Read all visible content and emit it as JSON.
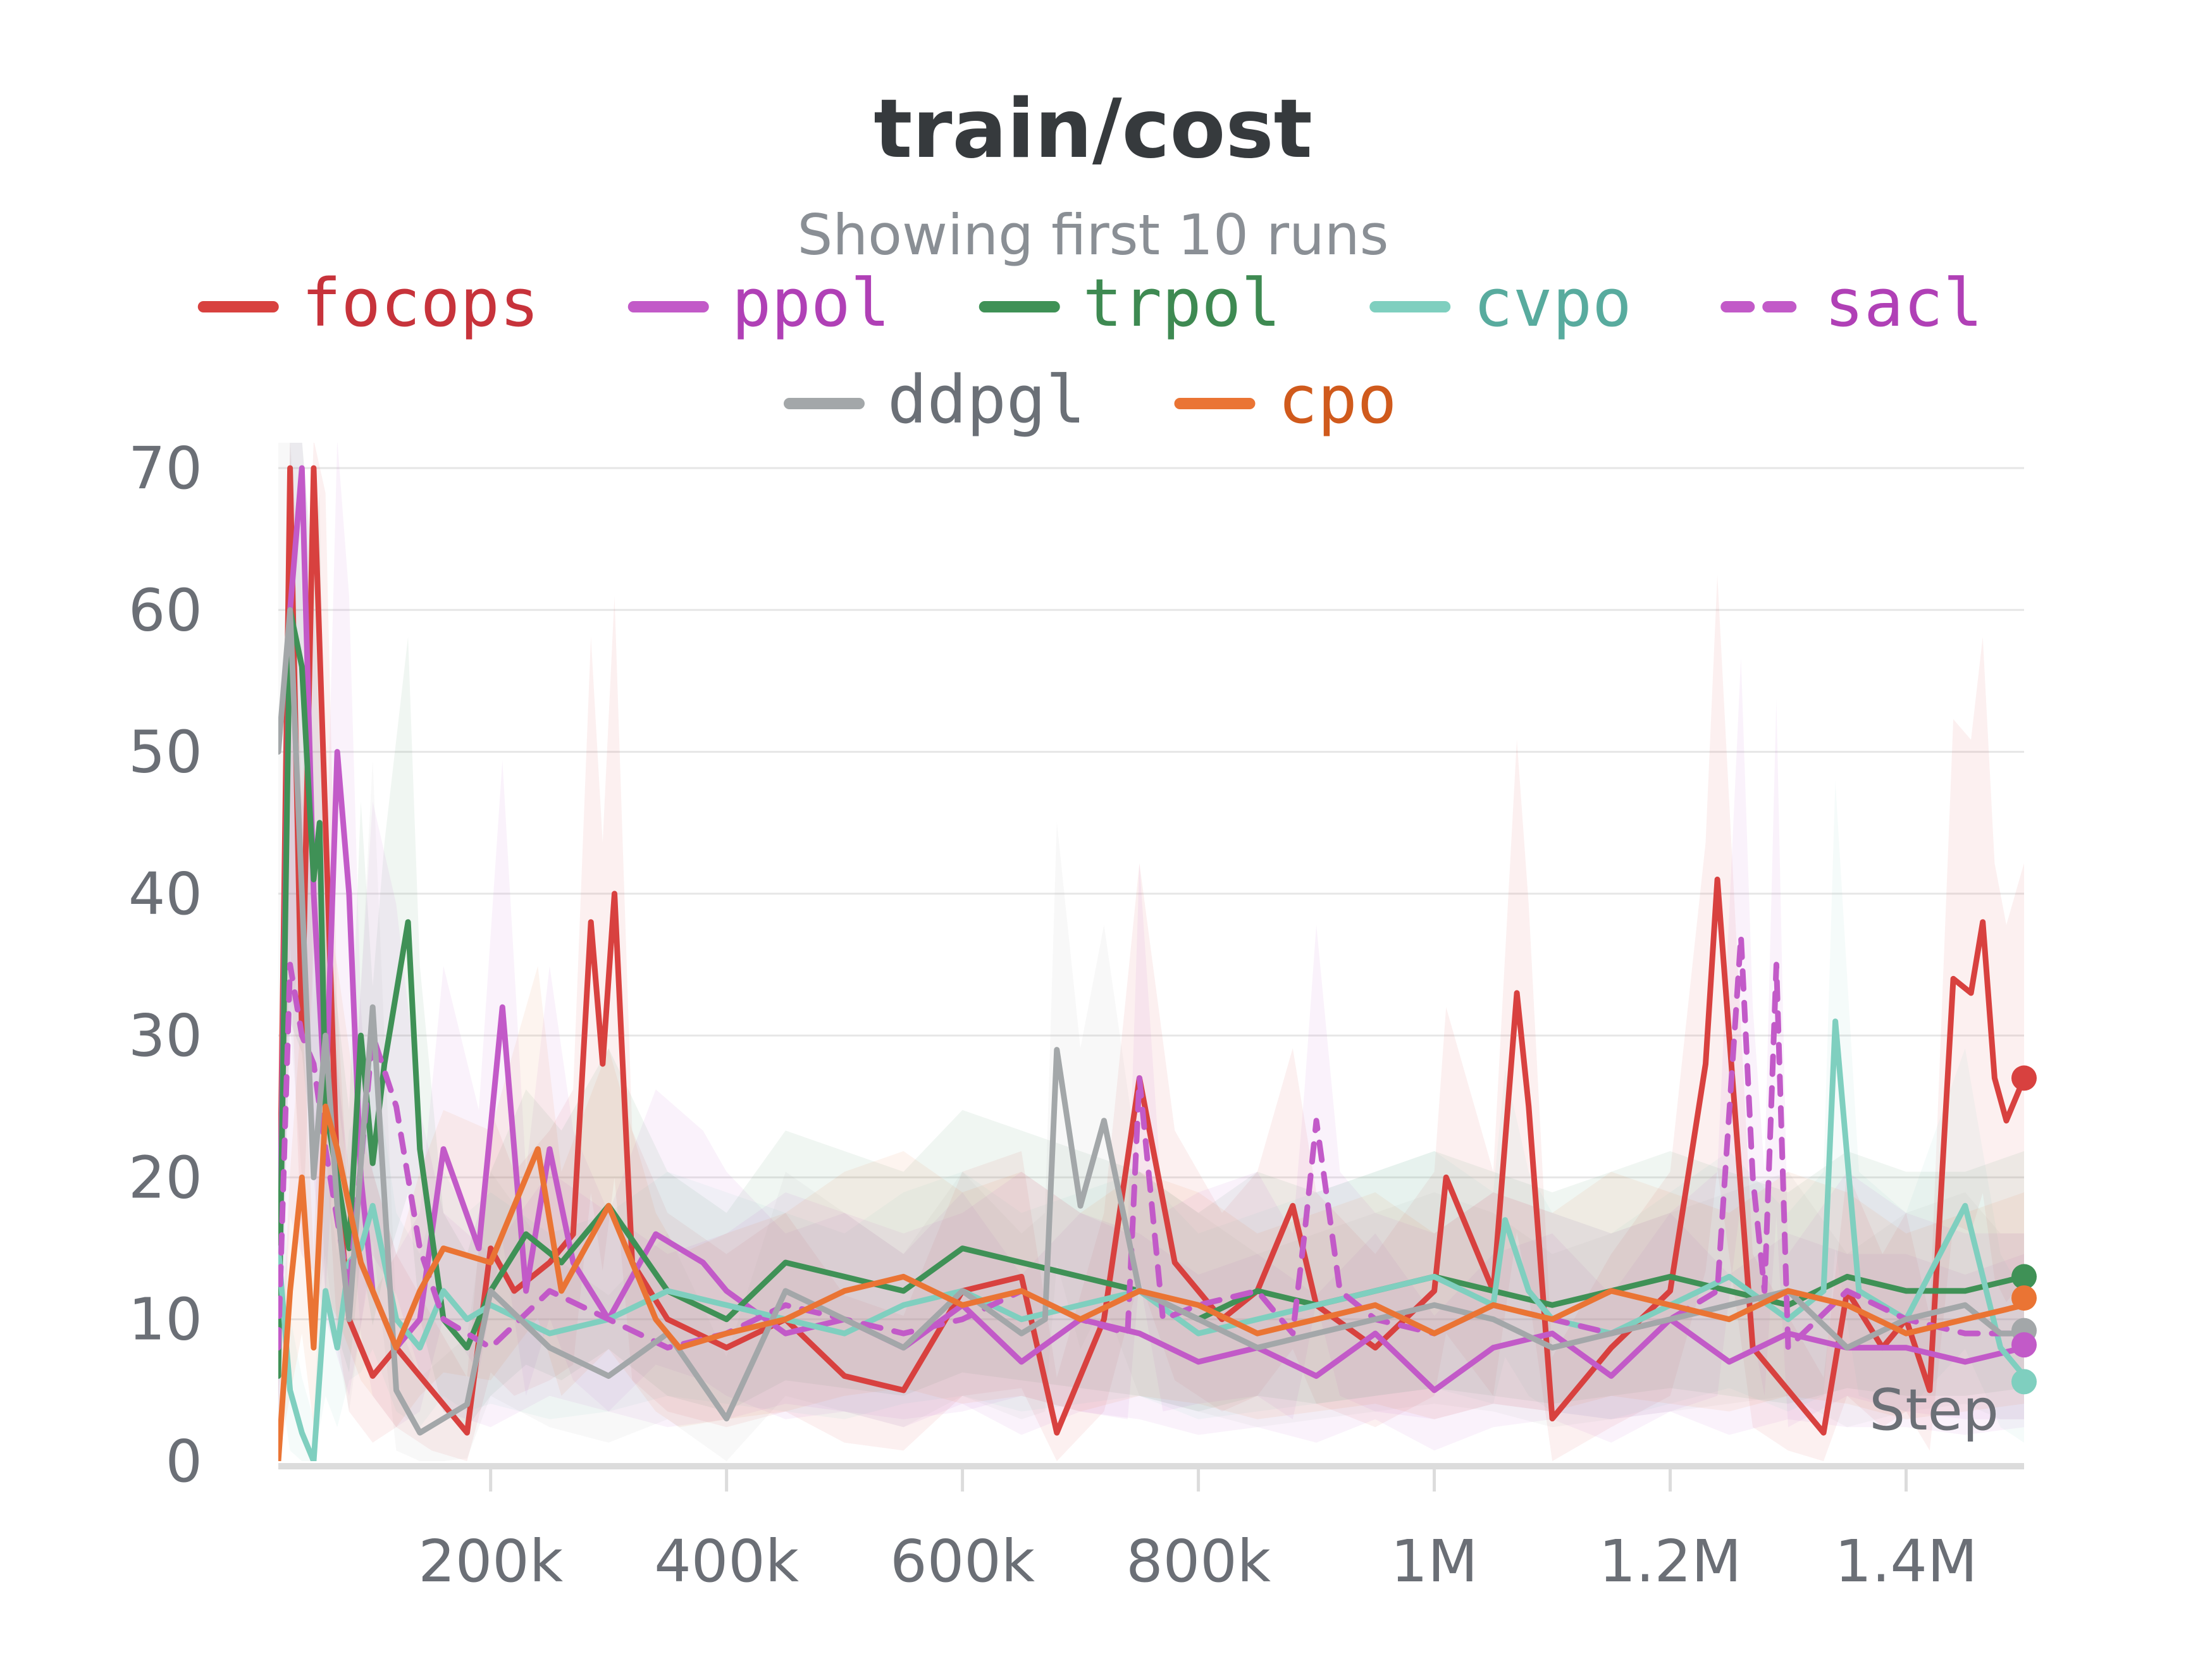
{
  "chart_data": {
    "type": "line",
    "title": "train/cost",
    "subtitle": "Showing first 10 runs",
    "xlabel": "Step",
    "ylabel": "",
    "xlim": [
      20000,
      1500000
    ],
    "ylim": [
      0,
      70
    ],
    "y_ticks": [
      0,
      10,
      20,
      30,
      40,
      50,
      60,
      70
    ],
    "x_ticks": [
      {
        "value": 200000,
        "label": "200k"
      },
      {
        "value": 400000,
        "label": "400k"
      },
      {
        "value": 600000,
        "label": "600k"
      },
      {
        "value": 800000,
        "label": "800k"
      },
      {
        "value": 1000000,
        "label": "1M"
      },
      {
        "value": 1200000,
        "label": "1.2M"
      },
      {
        "value": 1400000,
        "label": "1.4M"
      }
    ],
    "grid": true,
    "legend_position": "top",
    "series": [
      {
        "name": "focops",
        "color": "#d8413f",
        "text_color": "#c7333b",
        "dash": false,
        "x": [
          20000,
          30000,
          40000,
          50000,
          60000,
          70000,
          80000,
          100000,
          120000,
          150000,
          180000,
          200000,
          220000,
          250000,
          270000,
          285000,
          295000,
          305000,
          320000,
          350000,
          400000,
          450000,
          500000,
          550000,
          600000,
          650000,
          680000,
          720000,
          750000,
          780000,
          820000,
          850000,
          880000,
          900000,
          950000,
          1000000,
          1010000,
          1050000,
          1070000,
          1080000,
          1100000,
          1150000,
          1200000,
          1230000,
          1240000,
          1250000,
          1270000,
          1300000,
          1330000,
          1350000,
          1380000,
          1400000,
          1420000,
          1440000,
          1455000,
          1465000,
          1475000,
          1485000,
          1500000
        ],
        "y": [
          10,
          70,
          30,
          70,
          45,
          20,
          10,
          6,
          8,
          5,
          2,
          15,
          12,
          14,
          16,
          38,
          28,
          40,
          14,
          10,
          8,
          10,
          6,
          5,
          12,
          13,
          2,
          10,
          27,
          14,
          10,
          12,
          18,
          11,
          8,
          12,
          20,
          12,
          33,
          25,
          3,
          8,
          12,
          28,
          41,
          30,
          8,
          5,
          2,
          12,
          8,
          10,
          5,
          34,
          33,
          38,
          27,
          24,
          27
        ]
      },
      {
        "name": "ppol",
        "color": "#c25ac8",
        "text_color": "#b040b6",
        "dash": false,
        "x": [
          20000,
          30000,
          40000,
          50000,
          60000,
          70000,
          80000,
          90000,
          100000,
          120000,
          140000,
          160000,
          190000,
          210000,
          230000,
          250000,
          270000,
          300000,
          340000,
          360000,
          380000,
          400000,
          450000,
          500000,
          550000,
          600000,
          650000,
          700000,
          750000,
          800000,
          850000,
          900000,
          950000,
          1000000,
          1050000,
          1100000,
          1150000,
          1200000,
          1250000,
          1300000,
          1350000,
          1400000,
          1450000,
          1500000
        ],
        "y": [
          10,
          60,
          70,
          40,
          25,
          50,
          40,
          20,
          12,
          8,
          10,
          22,
          15,
          32,
          12,
          22,
          14,
          10,
          16,
          15,
          14,
          12,
          9,
          10,
          8,
          11,
          7,
          10,
          9,
          7,
          8,
          6,
          9,
          5,
          8,
          9,
          6,
          10,
          7,
          9,
          8,
          8,
          7,
          8
        ]
      },
      {
        "name": "trpol",
        "color": "#3f9156",
        "text_color": "#3e8a52",
        "dash": false,
        "x": [
          20000,
          30000,
          40000,
          50000,
          55000,
          60000,
          70000,
          80000,
          90000,
          100000,
          110000,
          130000,
          140000,
          160000,
          180000,
          200000,
          230000,
          260000,
          300000,
          350000,
          400000,
          450000,
          500000,
          550000,
          600000,
          650000,
          700000,
          750000,
          800000,
          850000,
          900000,
          950000,
          1000000,
          1050000,
          1100000,
          1150000,
          1200000,
          1250000,
          1300000,
          1350000,
          1400000,
          1450000,
          1500000
        ],
        "y": [
          6,
          60,
          56,
          41,
          45,
          25,
          20,
          15,
          30,
          21,
          28,
          38,
          22,
          10,
          8,
          12,
          16,
          14,
          18,
          12,
          10,
          14,
          13,
          12,
          15,
          14,
          13,
          12,
          10,
          12,
          11,
          12,
          13,
          12,
          11,
          12,
          13,
          12,
          11,
          13,
          12,
          12,
          13
        ]
      },
      {
        "name": "cvpo",
        "color": "#7fcfbf",
        "text_color": "#58ab9e",
        "dash": false,
        "x": [
          20000,
          30000,
          40000,
          50000,
          60000,
          70000,
          80000,
          90000,
          100000,
          120000,
          140000,
          160000,
          180000,
          200000,
          250000,
          300000,
          350000,
          400000,
          450000,
          500000,
          550000,
          600000,
          650000,
          700000,
          750000,
          800000,
          850000,
          900000,
          950000,
          1000000,
          1050000,
          1060000,
          1080000,
          1100000,
          1150000,
          1200000,
          1250000,
          1300000,
          1330000,
          1340000,
          1360000,
          1400000,
          1450000,
          1480000,
          1500000
        ],
        "y": [
          15,
          5,
          2,
          0,
          12,
          8,
          14,
          15,
          18,
          10,
          8,
          12,
          10,
          11,
          9,
          10,
          12,
          11,
          10,
          9,
          11,
          12,
          10,
          11,
          12,
          9,
          10,
          11,
          12,
          13,
          11,
          17,
          12,
          10,
          9,
          11,
          13,
          10,
          12,
          31,
          12,
          10,
          18,
          8,
          6
        ]
      },
      {
        "name": "sacl",
        "color": "#c25ac8",
        "text_color": "#b040b6",
        "dash": true,
        "x": [
          20000,
          30000,
          40000,
          50000,
          60000,
          80000,
          100000,
          120000,
          140000,
          160000,
          200000,
          250000,
          300000,
          350000,
          400000,
          450000,
          500000,
          550000,
          600000,
          650000,
          700000,
          740000,
          750000,
          770000,
          800000,
          850000,
          880000,
          890000,
          900000,
          920000,
          950000,
          1000000,
          1050000,
          1100000,
          1150000,
          1200000,
          1240000,
          1260000,
          1270000,
          1280000,
          1290000,
          1300000,
          1350000,
          1400000,
          1450000,
          1500000
        ],
        "y": [
          8,
          35,
          30,
          28,
          22,
          12,
          30,
          25,
          15,
          10,
          8,
          12,
          10,
          8,
          9,
          11,
          10,
          9,
          10,
          12,
          10,
          9,
          27,
          10,
          11,
          12,
          9,
          16,
          24,
          12,
          10,
          9,
          11,
          10,
          9,
          10,
          12,
          37,
          20,
          12,
          35,
          8,
          12,
          10,
          9,
          9
        ]
      },
      {
        "name": "ddpgl",
        "color": "#a3a7a9",
        "text_color": "#6b7077",
        "dash": false,
        "x": [
          20000,
          30000,
          40000,
          50000,
          60000,
          70000,
          80000,
          100000,
          120000,
          140000,
          160000,
          180000,
          200000,
          250000,
          300000,
          350000,
          400000,
          450000,
          500000,
          550000,
          600000,
          650000,
          670000,
          680000,
          700000,
          720000,
          750000,
          800000,
          850000,
          900000,
          950000,
          1000000,
          1050000,
          1100000,
          1150000,
          1200000,
          1250000,
          1300000,
          1350000,
          1400000,
          1450000,
          1480000,
          1500000
        ],
        "y": [
          50,
          60,
          40,
          20,
          30,
          18,
          10,
          32,
          5,
          2,
          3,
          4,
          12,
          8,
          6,
          9,
          3,
          12,
          10,
          8,
          12,
          9,
          10,
          29,
          18,
          24,
          12,
          10,
          8,
          9,
          10,
          11,
          10,
          8,
          9,
          10,
          11,
          12,
          8,
          10,
          11,
          9,
          9
        ]
      },
      {
        "name": "cpo",
        "color": "#ea7434",
        "text_color": "#d05a1c",
        "dash": false,
        "x": [
          20000,
          30000,
          40000,
          50000,
          60000,
          70000,
          80000,
          90000,
          100000,
          120000,
          140000,
          160000,
          200000,
          240000,
          260000,
          300000,
          340000,
          360000,
          400000,
          450000,
          500000,
          550000,
          600000,
          650000,
          700000,
          750000,
          800000,
          850000,
          900000,
          950000,
          1000000,
          1050000,
          1100000,
          1150000,
          1200000,
          1250000,
          1300000,
          1350000,
          1400000,
          1450000,
          1500000
        ],
        "y": [
          0,
          12,
          20,
          8,
          25,
          22,
          18,
          14,
          12,
          8,
          12,
          15,
          14,
          22,
          12,
          18,
          10,
          8,
          9,
          10,
          12,
          13,
          11,
          12,
          10,
          12,
          11,
          9,
          10,
          11,
          9,
          11,
          10,
          12,
          11,
          10,
          12,
          11,
          9,
          10,
          11
        ]
      }
    ],
    "end_markers": [
      {
        "series": "focops",
        "y": 27
      },
      {
        "series": "trpol",
        "y": 13
      },
      {
        "series": "cpo",
        "y": 11.5
      },
      {
        "series": "ddpgl",
        "y": 9.2
      },
      {
        "series": "ppol",
        "y": 8.2
      },
      {
        "series": "cvpo",
        "y": 5.6
      }
    ]
  }
}
